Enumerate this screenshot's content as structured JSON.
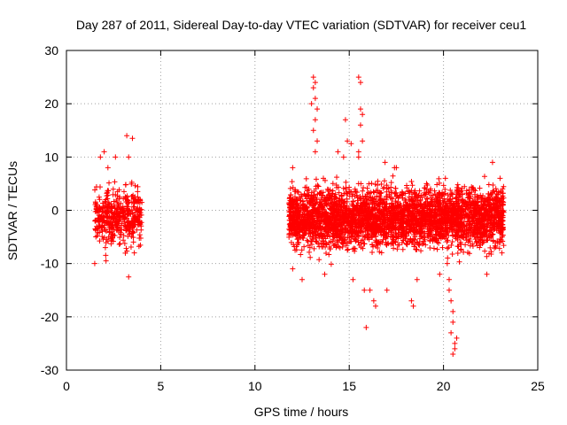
{
  "chart_data": {
    "type": "scatter",
    "title": "Day 287 of 2011, Sidereal Day-to-day VTEC variation (SDTVAR) for receiver ceu1",
    "xlabel": "GPS time / hours",
    "ylabel": "SDTVAR / TECUs",
    "xlim": [
      0,
      25
    ],
    "ylim": [
      -30,
      30
    ],
    "xticks": [
      0,
      5,
      10,
      15,
      20,
      25
    ],
    "yticks": [
      -30,
      -20,
      -10,
      0,
      10,
      20,
      30
    ],
    "xtick_labels": [
      "0",
      "5",
      "10",
      "15",
      "20",
      "25"
    ],
    "ytick_labels": [
      "-30",
      "-20",
      "-10",
      "0",
      "10",
      "20",
      "30"
    ],
    "grid": true,
    "marker": "+",
    "series": [
      {
        "name": "SDTVAR",
        "color": "#ff0000",
        "segments": [
          {
            "x_range": [
              1.5,
              4.0
            ],
            "center": -1,
            "spread": 3.5,
            "count": 450
          },
          {
            "x_range": [
              11.8,
              23.2
            ],
            "center": -1.5,
            "spread": 3.8,
            "count": 3600
          }
        ],
        "points": [
          [
            1.5,
            -10
          ],
          [
            1.8,
            10
          ],
          [
            2.0,
            11
          ],
          [
            2.2,
            8
          ],
          [
            2.6,
            10
          ],
          [
            3.2,
            14
          ],
          [
            3.5,
            13.5
          ],
          [
            3.3,
            10
          ],
          [
            3.3,
            -12.5
          ],
          [
            2.1,
            -9.5
          ],
          [
            3.6,
            -8
          ],
          [
            12.0,
            8
          ],
          [
            12.0,
            -11
          ],
          [
            13.1,
            25
          ],
          [
            13.2,
            24
          ],
          [
            13.1,
            23
          ],
          [
            13.2,
            21
          ],
          [
            13.0,
            20
          ],
          [
            13.3,
            19
          ],
          [
            13.2,
            17
          ],
          [
            13.1,
            15
          ],
          [
            13.3,
            13
          ],
          [
            13.2,
            11
          ],
          [
            12.5,
            -13
          ],
          [
            13.7,
            -12
          ],
          [
            14.4,
            11
          ],
          [
            14.7,
            10
          ],
          [
            14.8,
            17
          ],
          [
            14.9,
            13
          ],
          [
            15.1,
            12.5
          ],
          [
            15.5,
            25
          ],
          [
            15.6,
            24
          ],
          [
            15.6,
            19
          ],
          [
            15.7,
            18
          ],
          [
            15.6,
            16
          ],
          [
            15.7,
            13
          ],
          [
            15.5,
            11
          ],
          [
            15.5,
            10
          ],
          [
            15.2,
            -13
          ],
          [
            15.8,
            -15
          ],
          [
            16.1,
            -15
          ],
          [
            16.3,
            -17
          ],
          [
            16.4,
            -18
          ],
          [
            15.9,
            -22
          ],
          [
            16.9,
            9
          ],
          [
            17.0,
            -15
          ],
          [
            17.4,
            8
          ],
          [
            17.5,
            8
          ],
          [
            18.3,
            -17
          ],
          [
            18.4,
            -18
          ],
          [
            18.6,
            -13
          ],
          [
            19.1,
            5
          ],
          [
            19.8,
            -12
          ],
          [
            20.1,
            6
          ],
          [
            20.2,
            -10
          ],
          [
            20.3,
            -13
          ],
          [
            20.3,
            -15
          ],
          [
            20.4,
            -17
          ],
          [
            20.5,
            -19
          ],
          [
            20.5,
            -21
          ],
          [
            20.4,
            -23
          ],
          [
            20.6,
            -25
          ],
          [
            20.6,
            -26
          ],
          [
            20.5,
            -27
          ],
          [
            20.7,
            -24
          ],
          [
            22.3,
            -12
          ],
          [
            22.6,
            9
          ],
          [
            23.0,
            6
          ],
          [
            23.1,
            -8
          ]
        ]
      }
    ]
  }
}
